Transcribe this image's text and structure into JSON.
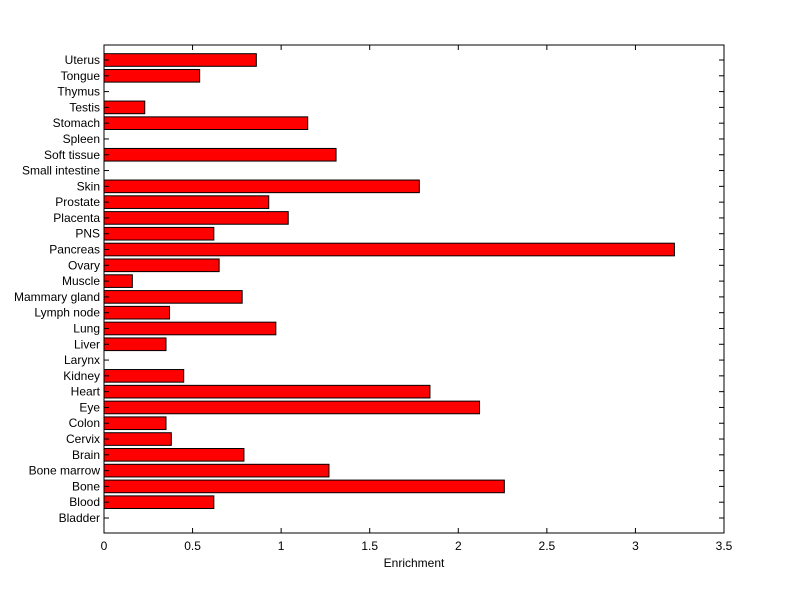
{
  "chart_data": {
    "type": "bar",
    "orientation": "horizontal",
    "xlabel": "Enrichment",
    "ylabel": "",
    "title": "",
    "xlim": [
      0,
      3.5
    ],
    "xticks": [
      "0",
      "0.5",
      "1",
      "1.5",
      "2",
      "2.5",
      "3",
      "3.5"
    ],
    "bar_color": "#ff0000",
    "bar_edge_color": "#000000",
    "grid": false,
    "categories": [
      "Bladder",
      "Blood",
      "Bone",
      "Bone marrow",
      "Brain",
      "Cervix",
      "Colon",
      "Eye",
      "Heart",
      "Kidney",
      "Larynx",
      "Liver",
      "Lung",
      "Lymph node",
      "Mammary gland",
      "Muscle",
      "Ovary",
      "Pancreas",
      "PNS",
      "Placenta",
      "Prostate",
      "Skin",
      "Small intestine",
      "Soft tissue",
      "Spleen",
      "Stomach",
      "Testis",
      "Thymus",
      "Tongue",
      "Uterus"
    ],
    "values": [
      0,
      0.62,
      2.26,
      1.27,
      0.79,
      0.38,
      0.35,
      2.12,
      1.84,
      0.45,
      0,
      0.35,
      0.97,
      0.37,
      0.78,
      0.16,
      0.65,
      3.22,
      0.62,
      1.04,
      0.93,
      1.78,
      0,
      1.31,
      0,
      1.15,
      0.23,
      0,
      0.54,
      0.86
    ]
  }
}
